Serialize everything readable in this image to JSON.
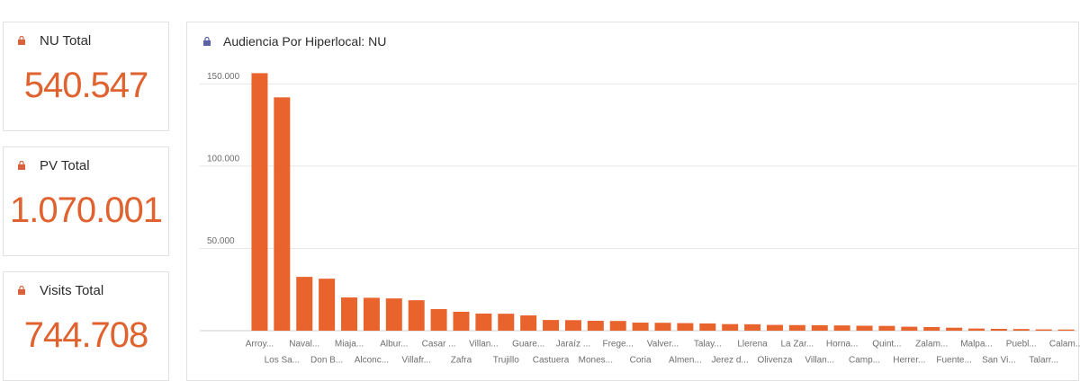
{
  "cards": [
    {
      "title": "NU Total",
      "value": "540.547"
    },
    {
      "title": "PV Total",
      "value": "1.070.001"
    },
    {
      "title": "Visits Total",
      "value": "744.708"
    }
  ],
  "chart_data": {
    "type": "bar",
    "title": "Audiencia Por Hiperlocal: NU",
    "color": "#e9632d",
    "categories": [
      "Arroy...",
      "Los Sa...",
      "Naval...",
      "Don B...",
      "Miaja...",
      "Alconc...",
      "Albur...",
      "Villafr...",
      "Casar ...",
      "Zafra",
      "Villan...",
      "Trujillo",
      "Guare...",
      "Castuera",
      "Jaraíz ...",
      "Mones...",
      "Frege...",
      "Coria",
      "Valver...",
      "Almen...",
      "Talay...",
      "Jerez d...",
      "Llerena",
      "Olivenza",
      "La Zar...",
      "Villan...",
      "Horna...",
      "Camp...",
      "Quint...",
      "Herrer...",
      "Zalam...",
      "Fuente...",
      "Malpa...",
      "San Vi...",
      "Puebl...",
      "Talarr...",
      "Calam..."
    ],
    "values": [
      156500,
      141800,
      32700,
      31600,
      20200,
      20000,
      19600,
      18500,
      13100,
      11500,
      10400,
      10300,
      9300,
      6500,
      6400,
      6000,
      5900,
      4900,
      4800,
      4600,
      4400,
      4000,
      3900,
      3500,
      3400,
      3300,
      3200,
      3000,
      2900,
      2400,
      2200,
      1800,
      1300,
      1100,
      1000,
      800,
      700
    ],
    "ylim": [
      0,
      160000
    ],
    "yticks": [
      {
        "value": 50000,
        "label": "50.000"
      },
      {
        "value": 100000,
        "label": "100.000"
      },
      {
        "value": 150000,
        "label": "150.000"
      }
    ],
    "grid": true
  }
}
